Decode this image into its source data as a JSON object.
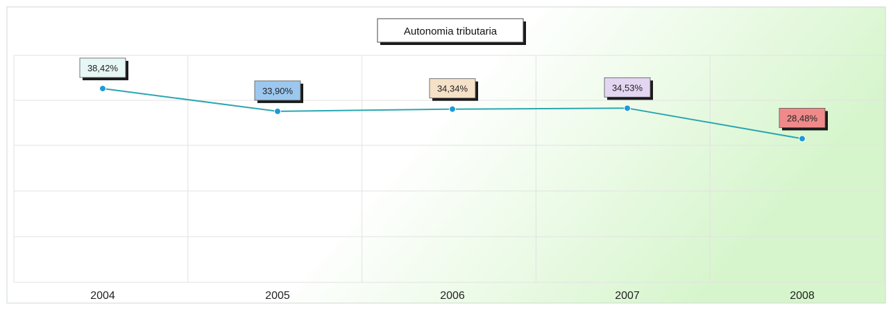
{
  "chart_data": {
    "type": "line",
    "title": "Autonomia tributaria",
    "categories": [
      "2004",
      "2005",
      "2006",
      "2007",
      "2008"
    ],
    "series": [
      {
        "values": [
          38.42,
          33.9,
          34.34,
          34.53,
          28.48
        ],
        "value_labels": [
          "38,42%",
          "33,90%",
          "34,34%",
          "34,53%",
          "28,48%"
        ],
        "color": "#2aa6b0",
        "label_colors": [
          "#e6f7f5",
          "#9cc8ef",
          "#f5e0c8",
          "#e3d6f2",
          "#f08a8a"
        ]
      }
    ],
    "ylim": [
      0,
      45
    ],
    "grid": true,
    "legend": "none",
    "colors": {
      "background": "#ffffff",
      "plot_background_accent": "#d9f7cf",
      "grid": "#e2e2e2",
      "line": "#2aa6b0",
      "marker": "#1e9ad6"
    }
  }
}
